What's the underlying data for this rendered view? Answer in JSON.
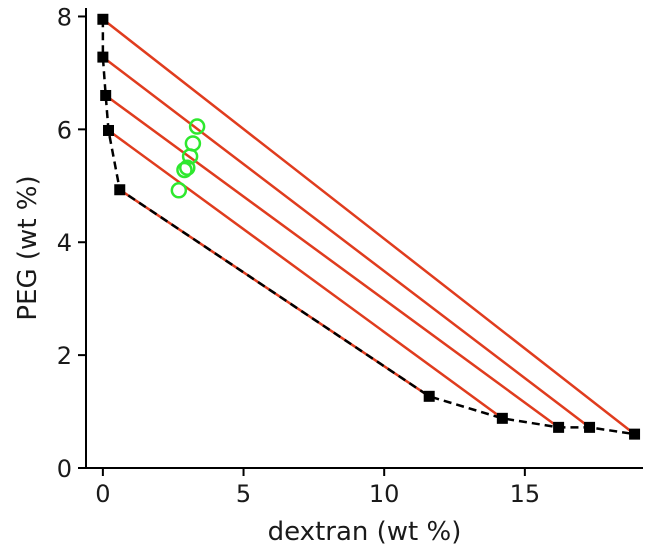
{
  "chart_data": {
    "type": "scatter",
    "title": "",
    "xlabel": "dextran (wt %)",
    "ylabel": "PEG (wt %)",
    "xlim": [
      -0.6,
      19.2
    ],
    "ylim": [
      0,
      8.15
    ],
    "x_ticks": [
      0,
      5,
      10,
      15
    ],
    "x_tick_labels": [
      "0",
      "5",
      "10",
      "15"
    ],
    "y_ticks": [
      0,
      2,
      4,
      6,
      8
    ],
    "y_tick_labels": [
      "0",
      "2",
      "4",
      "6",
      "8"
    ],
    "grid": false,
    "legend": "none",
    "series": [
      {
        "kind": "binodal",
        "marker": "square",
        "line": "dashed",
        "color": "#000000",
        "x": [
          0.0,
          0.0,
          0.1,
          0.2,
          0.6,
          11.6,
          14.2,
          16.2,
          17.3,
          18.9
        ],
        "y": [
          7.95,
          7.28,
          6.6,
          5.98,
          4.93,
          1.27,
          0.88,
          0.72,
          0.72,
          0.6
        ]
      },
      {
        "kind": "tie_lines",
        "color": "#e03c1e",
        "lines": [
          [
            [
              0.0,
              7.95
            ],
            [
              18.9,
              0.6
            ]
          ],
          [
            [
              0.0,
              7.28
            ],
            [
              17.3,
              0.72
            ]
          ],
          [
            [
              0.1,
              6.6
            ],
            [
              16.2,
              0.72
            ]
          ],
          [
            [
              0.2,
              5.98
            ],
            [
              14.2,
              0.88
            ]
          ],
          [
            [
              0.6,
              4.93
            ],
            [
              11.6,
              1.27
            ]
          ]
        ]
      },
      {
        "kind": "open_circles",
        "marker": "circle-open",
        "color": "#2ee82e",
        "x": [
          2.7,
          2.9,
          3.0,
          3.1,
          3.2,
          3.35
        ],
        "y": [
          4.92,
          5.28,
          5.32,
          5.52,
          5.75,
          6.05
        ]
      }
    ]
  }
}
